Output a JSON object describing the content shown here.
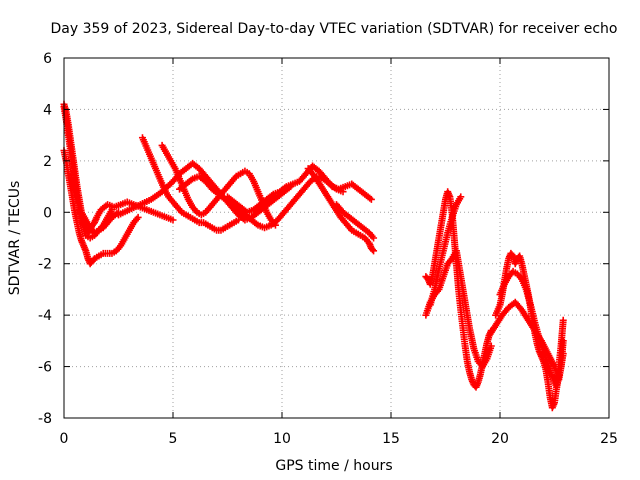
{
  "chart_data": {
    "type": "scatter",
    "title": "Day 359 of 2023, Sidereal Day-to-day VTEC variation (SDTVAR) for receiver echo",
    "xlabel": "GPS time / hours",
    "ylabel": "SDTVAR / TECUs",
    "xlim": [
      0,
      25
    ],
    "ylim": [
      -8,
      6
    ],
    "xticks": [
      0,
      5,
      10,
      15,
      20,
      25
    ],
    "yticks": [
      -8,
      -6,
      -4,
      -2,
      0,
      2,
      4,
      6
    ],
    "grid": true,
    "marker": "+",
    "color": "#ff0000",
    "series": [
      {
        "x": [
          0.0,
          0.1,
          0.2,
          0.3,
          0.4,
          0.5,
          0.6,
          0.7,
          0.8,
          0.9,
          1.0,
          1.1,
          1.2,
          1.3,
          1.4,
          1.5,
          1.7,
          2.0,
          2.3,
          2.6,
          2.9,
          3.2,
          3.5,
          3.8,
          4.1,
          4.4,
          4.7,
          5.0
        ],
        "y": [
          4.2,
          3.9,
          3.4,
          2.8,
          2.2,
          1.6,
          1.0,
          0.5,
          0.0,
          -0.4,
          -0.6,
          -0.8,
          -0.7,
          -0.5,
          -0.4,
          -0.2,
          0.1,
          0.3,
          0.2,
          0.3,
          0.4,
          0.3,
          0.2,
          0.1,
          0.0,
          -0.1,
          -0.2,
          -0.3
        ]
      },
      {
        "x": [
          0.0,
          0.1,
          0.2,
          0.3,
          0.4,
          0.5,
          0.6,
          0.7,
          0.8,
          0.9,
          1.0,
          1.1,
          1.2,
          1.3,
          1.4,
          1.6,
          1.8,
          2.0,
          2.2,
          2.4,
          2.6,
          2.8,
          3.0,
          3.2,
          3.4
        ],
        "y": [
          2.4,
          2.0,
          1.5,
          1.0,
          0.5,
          0.0,
          -0.4,
          -0.8,
          -1.1,
          -1.3,
          -1.5,
          -1.8,
          -2.0,
          -1.9,
          -1.8,
          -1.7,
          -1.6,
          -1.6,
          -1.6,
          -1.5,
          -1.3,
          -1.0,
          -0.7,
          -0.4,
          -0.2
        ]
      },
      {
        "x": [
          0.0,
          0.1,
          0.2,
          0.3,
          0.4,
          0.5,
          0.6,
          0.7,
          0.8,
          0.9,
          1.0,
          1.2,
          1.4,
          1.6,
          1.8,
          2.0,
          2.2
        ],
        "y": [
          4.1,
          3.6,
          3.0,
          2.4,
          1.8,
          1.2,
          0.6,
          0.1,
          -0.3,
          -0.6,
          -0.9,
          -1.0,
          -0.9,
          -0.7,
          -0.5,
          -0.2,
          0.1
        ]
      },
      {
        "x": [
          0.2,
          0.4,
          0.6,
          0.8,
          1.0,
          1.2,
          1.4,
          1.6,
          1.8,
          2.0,
          2.2,
          2.5
        ],
        "y": [
          1.5,
          1.0,
          0.5,
          0.0,
          -0.3,
          -0.6,
          -0.8,
          -0.7,
          -0.6,
          -0.4,
          -0.2,
          0.0
        ]
      },
      {
        "x": [
          3.6,
          3.8,
          4.0,
          4.2,
          4.4,
          4.6,
          4.8,
          5.0,
          5.2,
          5.4,
          5.6,
          5.8,
          6.0,
          6.2,
          6.4,
          6.6,
          6.8,
          7.0,
          7.2,
          7.4,
          7.6,
          7.8,
          8.0
        ],
        "y": [
          2.9,
          2.5,
          2.1,
          1.7,
          1.3,
          0.9,
          0.6,
          0.4,
          0.2,
          0.0,
          -0.1,
          -0.2,
          -0.3,
          -0.4,
          -0.4,
          -0.5,
          -0.6,
          -0.7,
          -0.7,
          -0.6,
          -0.5,
          -0.4,
          -0.3
        ]
      },
      {
        "x": [
          4.5,
          4.7,
          4.9,
          5.1,
          5.3,
          5.5,
          5.7,
          5.9,
          6.1,
          6.3,
          6.5,
          6.7,
          6.9,
          7.1,
          7.3,
          7.5,
          7.7,
          7.9,
          8.1,
          8.3,
          8.5,
          8.7,
          8.9,
          9.1,
          9.3,
          9.5,
          9.7
        ],
        "y": [
          2.6,
          2.3,
          2.0,
          1.7,
          1.3,
          0.9,
          0.5,
          0.2,
          0.0,
          -0.1,
          0.0,
          0.2,
          0.4,
          0.6,
          0.8,
          1.0,
          1.2,
          1.4,
          1.5,
          1.6,
          1.5,
          1.2,
          0.8,
          0.4,
          0.0,
          -0.3,
          -0.5
        ]
      },
      {
        "x": [
          2.5,
          3.0,
          3.5,
          4.0,
          4.5,
          5.0,
          5.3,
          5.6,
          5.9,
          6.2,
          6.5,
          6.8,
          7.1,
          7.4,
          7.7,
          8.0,
          8.3,
          8.6,
          8.9,
          9.2,
          9.5,
          9.8,
          10.1,
          10.4
        ],
        "y": [
          -0.1,
          0.1,
          0.3,
          0.5,
          0.8,
          1.2,
          1.5,
          1.7,
          1.9,
          1.7,
          1.4,
          1.1,
          0.8,
          0.5,
          0.2,
          -0.1,
          -0.3,
          -0.2,
          0.0,
          0.2,
          0.4,
          0.6,
          0.8,
          1.0
        ]
      },
      {
        "x": [
          5.3,
          5.6,
          5.9,
          6.2,
          6.5,
          6.8,
          7.1,
          7.4,
          7.7,
          8.0,
          8.3,
          8.6,
          8.9,
          9.2,
          9.5,
          9.8,
          10.1,
          10.4,
          10.7,
          11.0,
          11.3,
          11.6,
          11.9,
          12.2,
          12.5,
          12.8
        ],
        "y": [
          0.9,
          1.1,
          1.3,
          1.4,
          1.2,
          0.9,
          0.7,
          0.5,
          0.3,
          0.1,
          -0.1,
          -0.3,
          -0.5,
          -0.6,
          -0.5,
          -0.3,
          0.0,
          0.3,
          0.6,
          0.9,
          1.2,
          1.4,
          1.3,
          1.1,
          0.9,
          0.8
        ]
      },
      {
        "x": [
          7.5,
          7.8,
          8.1,
          8.4,
          8.7,
          9.0,
          9.3,
          9.6,
          9.9,
          10.2,
          10.5,
          10.8,
          11.1,
          11.4,
          11.7,
          12.0,
          12.3,
          12.6,
          12.9,
          13.2,
          13.5,
          13.8,
          14.1
        ],
        "y": [
          0.6,
          0.4,
          0.2,
          0.0,
          0.1,
          0.3,
          0.5,
          0.7,
          0.8,
          1.0,
          1.1,
          1.2,
          1.5,
          1.8,
          1.6,
          1.3,
          1.0,
          0.9,
          1.0,
          1.1,
          0.9,
          0.7,
          0.5
        ]
      },
      {
        "x": [
          11.2,
          11.5,
          11.8,
          12.1,
          12.4,
          12.7,
          13.0,
          13.2,
          13.4,
          13.6,
          13.8,
          14.0,
          14.1,
          14.2
        ],
        "y": [
          1.7,
          1.4,
          1.0,
          0.6,
          0.2,
          -0.2,
          -0.5,
          -0.7,
          -0.8,
          -0.9,
          -1.0,
          -1.2,
          -1.4,
          -1.5
        ]
      },
      {
        "x": [
          12.5,
          12.8,
          13.1,
          13.4,
          13.7,
          14.0,
          14.2
        ],
        "y": [
          0.3,
          0.0,
          -0.2,
          -0.4,
          -0.6,
          -0.8,
          -1.0
        ]
      },
      {
        "x": [
          16.6,
          16.7,
          16.8,
          16.9,
          17.0,
          17.1,
          17.2,
          17.3,
          17.4,
          17.5,
          17.6,
          17.7,
          17.8,
          17.9,
          18.0,
          18.1,
          18.2,
          18.3,
          18.4,
          18.5,
          18.6,
          18.7,
          18.8,
          18.9,
          19.0,
          19.1,
          19.2,
          19.3,
          19.4,
          19.5,
          19.6
        ],
        "y": [
          -2.5,
          -2.6,
          -2.8,
          -2.5,
          -2.0,
          -1.5,
          -1.0,
          -0.5,
          0.0,
          0.5,
          0.8,
          0.6,
          0.0,
          -1.0,
          -2.0,
          -3.0,
          -3.8,
          -4.5,
          -5.2,
          -5.8,
          -6.2,
          -6.5,
          -6.7,
          -6.8,
          -6.6,
          -6.3,
          -5.9,
          -5.5,
          -5.1,
          -4.8,
          -4.6
        ]
      },
      {
        "x": [
          16.6,
          16.8,
          17.0,
          17.2,
          17.4,
          17.6,
          17.8,
          18.0,
          18.2,
          18.4,
          18.6,
          18.8,
          19.0,
          19.2,
          19.4,
          19.6
        ],
        "y": [
          -4.0,
          -3.5,
          -3.2,
          -3.0,
          -2.5,
          -2.0,
          -1.8,
          -1.5,
          -2.5,
          -3.5,
          -4.5,
          -5.3,
          -5.8,
          -6.0,
          -5.7,
          -5.2
        ]
      },
      {
        "x": [
          16.8,
          17.0,
          17.2,
          17.4,
          17.6,
          17.8,
          18.0,
          18.2
        ],
        "y": [
          -3.6,
          -3.0,
          -2.2,
          -1.5,
          -0.8,
          -0.2,
          0.3,
          0.6
        ]
      },
      {
        "x": [
          19.8,
          20.0,
          20.1,
          20.2,
          20.3,
          20.4,
          20.5,
          20.6,
          20.7,
          20.8,
          20.9,
          21.0,
          21.1,
          21.2,
          21.3,
          21.4,
          21.5,
          21.6,
          21.7,
          21.8,
          21.9,
          22.0,
          22.1,
          22.2,
          22.3,
          22.4,
          22.5,
          22.6,
          22.7,
          22.8,
          22.9
        ],
        "y": [
          -4.0,
          -3.6,
          -3.2,
          -2.7,
          -2.2,
          -1.8,
          -1.6,
          -1.7,
          -2.0,
          -1.8,
          -1.7,
          -2.0,
          -2.4,
          -2.8,
          -3.2,
          -3.7,
          -4.2,
          -4.7,
          -5.1,
          -5.4,
          -5.6,
          -5.8,
          -6.1,
          -6.6,
          -7.2,
          -7.6,
          -7.4,
          -6.8,
          -6.0,
          -5.2,
          -4.2
        ]
      },
      {
        "x": [
          20.0,
          20.2,
          20.4,
          20.6,
          20.8,
          21.0,
          21.2,
          21.4,
          21.6,
          21.8,
          22.0,
          22.2,
          22.4,
          22.6,
          22.8,
          22.9
        ],
        "y": [
          -3.2,
          -2.8,
          -2.5,
          -2.3,
          -2.4,
          -2.6,
          -3.0,
          -3.6,
          -4.3,
          -4.9,
          -5.4,
          -5.9,
          -6.4,
          -6.8,
          -6.0,
          -5.0
        ]
      },
      {
        "x": [
          19.5,
          19.8,
          20.1,
          20.4,
          20.7,
          21.0,
          21.3,
          21.6,
          21.9,
          22.2,
          22.5,
          22.7,
          22.9
        ],
        "y": [
          -4.8,
          -4.4,
          -4.0,
          -3.7,
          -3.5,
          -3.8,
          -4.2,
          -4.6,
          -5.0,
          -5.5,
          -6.0,
          -6.5,
          -5.5
        ]
      }
    ]
  }
}
